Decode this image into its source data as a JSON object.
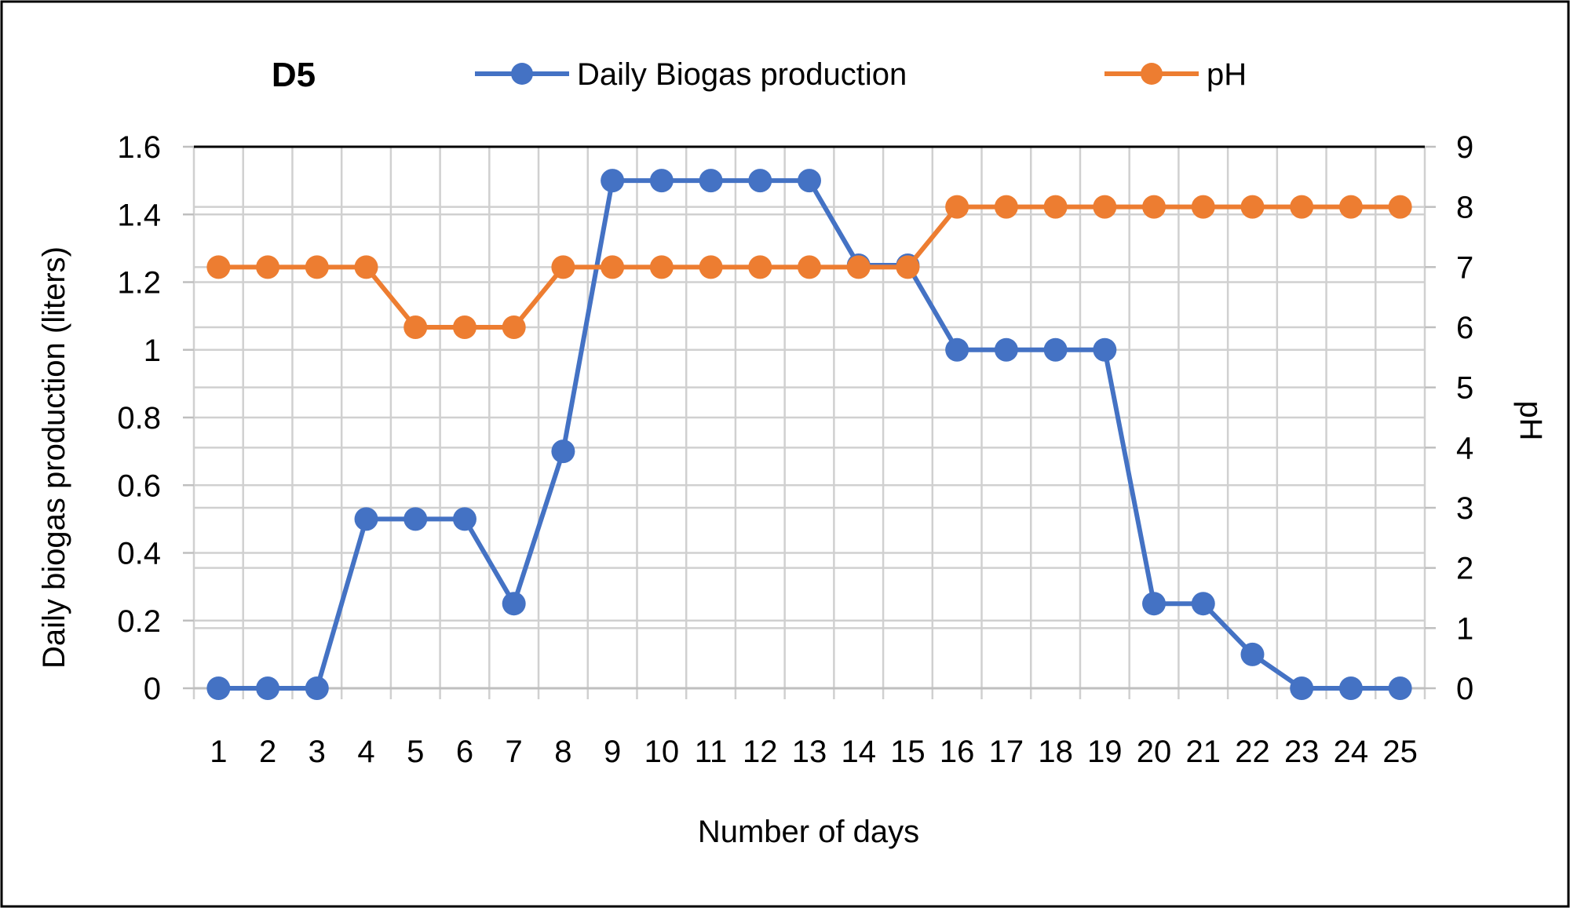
{
  "chart_data": {
    "type": "line",
    "title": "D5",
    "xlabel": "Number of days",
    "ylabel": "Daily biogas production (liters)",
    "y2label": "pH",
    "x": [
      1,
      2,
      3,
      4,
      5,
      6,
      7,
      8,
      9,
      10,
      11,
      12,
      13,
      14,
      15,
      16,
      17,
      18,
      19,
      20,
      21,
      22,
      23,
      24,
      25
    ],
    "ylim": [
      0,
      1.6
    ],
    "yticks": [
      "0",
      "0.2",
      "0.4",
      "0.6",
      "0.8",
      "1",
      "1.2",
      "1.4",
      "1.6"
    ],
    "y2lim": [
      0,
      9
    ],
    "y2ticks": [
      "0",
      "1",
      "2",
      "3",
      "4",
      "5",
      "6",
      "7",
      "8",
      "9"
    ],
    "grid": true,
    "legend_position": "top",
    "series": [
      {
        "name": "Daily Biogas production",
        "axis": "left",
        "color": "#4472C4",
        "values": [
          0,
          0,
          0,
          0.5,
          0.5,
          0.5,
          0.25,
          0.7,
          1.5,
          1.5,
          1.5,
          1.5,
          1.5,
          1.25,
          1.25,
          1,
          1,
          1,
          1,
          0.25,
          0.25,
          0.1,
          0,
          0,
          0
        ]
      },
      {
        "name": "pH",
        "axis": "right",
        "color": "#ED7D31",
        "values": [
          7,
          7,
          7,
          7,
          6,
          6,
          6,
          7,
          7,
          7,
          7,
          7,
          7,
          7,
          7,
          8,
          8,
          8,
          8,
          8,
          8,
          8,
          8,
          8,
          8
        ]
      }
    ]
  }
}
